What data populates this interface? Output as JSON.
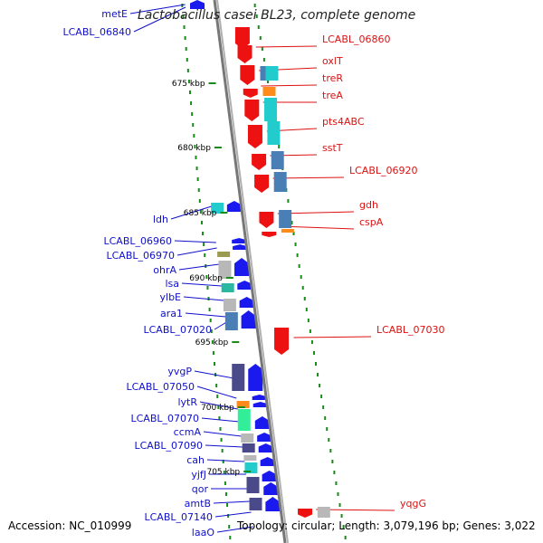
{
  "title": "Lactobacillus casei BL23, complete genome",
  "footer": {
    "accession": "Accession: NC_010999",
    "topology": "Topology: circular; Length: 3,079,196 bp; Genes: 3,022"
  },
  "colors": {
    "backbone": "#888888",
    "tick": "#1a8a1a",
    "forward_label": "#1010cc",
    "reverse_label": "#dd1111",
    "forward_gene": "#1a1aee",
    "reverse_gene": "#ee1111",
    "cds_cyan": "#22cccc",
    "cds_steel": "#4a7fb5",
    "cds_slate": "#4a4a8a",
    "cds_grey": "#b8b8b8",
    "cds_orange": "#ff8c1a",
    "cds_olive": "#9a9a50",
    "cds_teal": "#2ab8a0",
    "cds_green": "#33ee99"
  },
  "kbp_markers": [
    "675 kbp",
    "680 kbp",
    "685 kbp",
    "690 kbp",
    "695 kbp",
    "700 kbp",
    "705 kbp"
  ],
  "reverse_genes": [
    "LCABL_06860",
    "oxlT",
    "treR",
    "treA",
    "pts4ABC",
    "sstT",
    "LCABL_06920",
    "gdh",
    "cspA",
    "LCABL_07030",
    "yqgG"
  ],
  "forward_genes": [
    "metE",
    "LCABL_06840",
    "ldh",
    "LCABL_06960",
    "LCABL_06970",
    "ohrA",
    "lsa",
    "ylbE",
    "ara1",
    "LCABL_07020",
    "yvgP",
    "LCABL_07050",
    "lytR",
    "LCABL_07070",
    "ccmA",
    "LCABL_07090",
    "cah",
    "yjfJ",
    "qor",
    "amtB",
    "LCABL_07140",
    "laaO"
  ]
}
